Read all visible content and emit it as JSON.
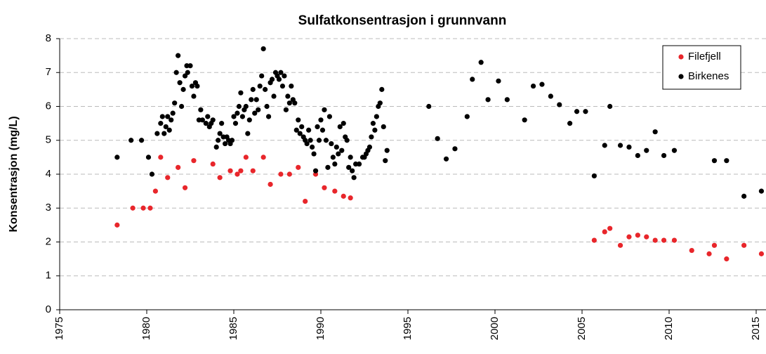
{
  "chart_data": {
    "type": "scatter",
    "title": "Sulfatkonsentrasjon i grunnvann",
    "y_label": "Konsentrasjon (mg/L)",
    "xlim": [
      1975,
      2015.5
    ],
    "xticks": [
      1975,
      1980,
      1985,
      1990,
      1995,
      2000,
      2005,
      2010,
      2015
    ],
    "ylim": [
      0,
      8
    ],
    "yticks": [
      0,
      1,
      2,
      3,
      4,
      5,
      6,
      7,
      8
    ],
    "grid": true,
    "legend_position": "upper right",
    "series": [
      {
        "name": "Filefjell",
        "color": "#e8262b",
        "x": [
          1978.3,
          1979.2,
          1979.8,
          1980.2,
          1980.5,
          1980.8,
          1981.2,
          1981.8,
          1982.2,
          1982.7,
          1983.8,
          1984.2,
          1984.8,
          1985.2,
          1985.4,
          1985.7,
          1986.1,
          1986.7,
          1987.1,
          1987.7,
          1988.2,
          1988.7,
          1989.1,
          1989.7,
          1990.2,
          1990.8,
          1991.3,
          1991.7,
          2005.7,
          2006.3,
          2006.6,
          2007.2,
          2007.7,
          2008.2,
          2008.7,
          2009.2,
          2009.7,
          2010.3,
          2011.3,
          2012.3,
          2012.6,
          2013.3,
          2014.3,
          2015.3
        ],
        "values": [
          2.5,
          3.0,
          3.0,
          3.0,
          3.5,
          4.5,
          3.9,
          4.2,
          3.6,
          4.4,
          4.3,
          3.9,
          4.1,
          4.0,
          4.1,
          4.5,
          4.1,
          4.5,
          3.7,
          4.0,
          4.0,
          4.2,
          3.2,
          4.0,
          3.6,
          3.5,
          3.35,
          3.3,
          2.05,
          2.3,
          2.4,
          1.9,
          2.15,
          2.2,
          2.15,
          2.05,
          2.05,
          2.05,
          1.75,
          1.65,
          1.9,
          1.5,
          1.9,
          1.65
        ]
      },
      {
        "name": "Birkenes",
        "color": "#000000",
        "x": [
          1978.3,
          1979.1,
          1979.7,
          1980.1,
          1980.3,
          1980.6,
          1980.8,
          1980.9,
          1981.0,
          1981.1,
          1981.2,
          1981.3,
          1981.4,
          1981.5,
          1981.6,
          1981.7,
          1981.8,
          1981.9,
          1982.0,
          1982.1,
          1982.2,
          1982.3,
          1982.35,
          1982.5,
          1982.6,
          1982.7,
          1982.8,
          1982.9,
          1983.0,
          1983.1,
          1983.2,
          1983.4,
          1983.5,
          1983.6,
          1983.7,
          1983.8,
          1984.0,
          1984.1,
          1984.2,
          1984.3,
          1984.4,
          1984.5,
          1984.6,
          1984.7,
          1984.8,
          1984.9,
          1985.0,
          1985.1,
          1985.2,
          1985.3,
          1985.4,
          1985.5,
          1985.6,
          1985.7,
          1985.8,
          1985.9,
          1986.0,
          1986.1,
          1986.2,
          1986.3,
          1986.4,
          1986.5,
          1986.6,
          1986.7,
          1986.8,
          1986.9,
          1987.0,
          1987.1,
          1987.2,
          1987.3,
          1987.4,
          1987.5,
          1987.6,
          1987.7,
          1987.8,
          1987.9,
          1988.0,
          1988.1,
          1988.2,
          1988.3,
          1988.4,
          1988.5,
          1988.6,
          1988.7,
          1988.8,
          1988.9,
          1989.0,
          1989.1,
          1989.2,
          1989.3,
          1989.4,
          1989.5,
          1989.6,
          1989.7,
          1989.8,
          1989.9,
          1990.0,
          1990.1,
          1990.2,
          1990.3,
          1990.4,
          1990.5,
          1990.6,
          1990.7,
          1990.8,
          1990.9,
          1991.0,
          1991.1,
          1991.2,
          1991.3,
          1991.4,
          1991.5,
          1991.6,
          1991.7,
          1991.8,
          1991.9,
          1992.0,
          1992.2,
          1992.4,
          1992.5,
          1992.6,
          1992.7,
          1992.8,
          1992.9,
          1993.0,
          1993.1,
          1993.2,
          1993.3,
          1993.4,
          1993.5,
          1993.6,
          1993.7,
          1993.8,
          1996.2,
          1996.7,
          1997.2,
          1997.7,
          1998.4,
          1998.7,
          1999.2,
          1999.6,
          2000.2,
          2000.7,
          2001.7,
          2002.2,
          2002.7,
          2003.2,
          2003.7,
          2004.3,
          2004.7,
          2005.2,
          2005.7,
          2006.3,
          2006.6,
          2007.2,
          2007.7,
          2008.2,
          2008.7,
          2009.2,
          2009.7,
          2010.3,
          2012.6,
          2013.3,
          2014.3,
          2015.3
        ],
        "values": [
          4.5,
          5.0,
          5.0,
          4.5,
          4.0,
          5.2,
          5.5,
          5.7,
          5.2,
          5.4,
          5.7,
          5.3,
          5.6,
          5.8,
          6.1,
          7.0,
          7.5,
          6.7,
          6.0,
          6.5,
          6.9,
          7.2,
          7.0,
          7.2,
          6.6,
          6.3,
          6.7,
          6.6,
          5.6,
          5.9,
          5.6,
          5.5,
          5.7,
          5.4,
          5.5,
          5.6,
          4.8,
          5.0,
          5.2,
          5.5,
          5.1,
          4.9,
          5.1,
          5.0,
          4.9,
          5.0,
          5.7,
          5.5,
          5.8,
          6.0,
          6.4,
          5.7,
          5.9,
          6.0,
          5.2,
          5.6,
          6.2,
          6.5,
          5.8,
          6.2,
          5.9,
          6.6,
          6.9,
          7.7,
          6.5,
          6.0,
          5.7,
          6.7,
          6.8,
          6.3,
          7.0,
          6.9,
          6.8,
          7.0,
          6.6,
          6.9,
          5.9,
          6.3,
          6.1,
          6.6,
          6.2,
          6.1,
          5.3,
          5.6,
          5.2,
          5.4,
          5.1,
          5.0,
          4.9,
          5.3,
          5.0,
          4.8,
          4.6,
          4.1,
          5.4,
          5.0,
          5.6,
          5.3,
          5.9,
          5.0,
          4.2,
          5.7,
          4.9,
          4.5,
          4.3,
          4.8,
          4.6,
          5.4,
          4.7,
          5.5,
          5.1,
          5.0,
          4.2,
          4.5,
          4.1,
          3.9,
          4.3,
          4.3,
          4.5,
          4.5,
          4.6,
          4.7,
          4.8,
          5.1,
          5.5,
          5.3,
          5.7,
          6.0,
          6.1,
          6.5,
          5.4,
          4.4,
          4.7,
          6.0,
          5.05,
          4.45,
          4.75,
          5.7,
          6.8,
          7.3,
          6.2,
          6.75,
          6.2,
          5.6,
          6.6,
          6.65,
          6.3,
          6.05,
          5.5,
          5.85,
          5.85,
          3.95,
          4.85,
          6.0,
          4.85,
          4.8,
          4.55,
          4.7,
          5.25,
          4.55,
          4.7,
          4.4,
          4.4,
          3.35,
          3.5
        ]
      }
    ]
  }
}
